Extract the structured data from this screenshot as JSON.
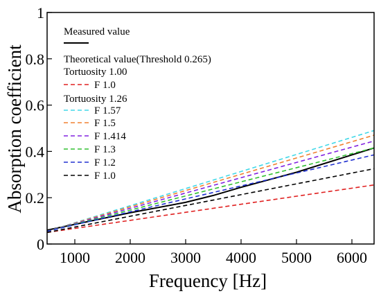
{
  "chart_data": {
    "type": "line",
    "xlabel": "Frequency [Hz]",
    "ylabel": "Absorption coefficient",
    "xlim": [
      500,
      6400
    ],
    "ylim": [
      0,
      1
    ],
    "xticks": [
      1000,
      2000,
      3000,
      4000,
      5000,
      6000
    ],
    "yticks": [
      0,
      0.2,
      0.4,
      0.6,
      0.8,
      1
    ],
    "ytick_labels": [
      "0",
      "0.2",
      "0.4",
      "0.6",
      "0.8",
      "1"
    ],
    "grid": false,
    "legend": {
      "position": "top-left",
      "entries": [
        {
          "kind": "header",
          "text": "Measured value"
        },
        {
          "kind": "line",
          "series": "measured"
        },
        {
          "kind": "header",
          "text": "Theoretical value(Threshold 0.265)"
        },
        {
          "kind": "header",
          "text": "Tortuosity 1.00"
        },
        {
          "kind": "line",
          "series": "t100_f10",
          "text": "F 1.0"
        },
        {
          "kind": "header",
          "text": "Tortuosity 1.26"
        },
        {
          "kind": "line",
          "series": "f157",
          "text": "F 1.57"
        },
        {
          "kind": "line",
          "series": "f15",
          "text": "F 1.5"
        },
        {
          "kind": "line",
          "series": "f1414",
          "text": "F 1.414"
        },
        {
          "kind": "line",
          "series": "f13",
          "text": "F 1.3"
        },
        {
          "kind": "line",
          "series": "f12",
          "text": "F 1.2"
        },
        {
          "kind": "line",
          "series": "f10",
          "text": "F 1.0"
        }
      ]
    },
    "series": [
      {
        "id": "measured",
        "color": "#000000",
        "dash": false,
        "x": [
          500,
          1000,
          2000,
          3000,
          3500,
          4000,
          5000,
          6000,
          6400
        ],
        "y": [
          0.06,
          0.085,
          0.135,
          0.18,
          0.21,
          0.245,
          0.31,
          0.385,
          0.415
        ]
      },
      {
        "id": "t100_f10",
        "color": "#e02020",
        "dash": true,
        "x": [
          500,
          6400
        ],
        "y": [
          0.05,
          0.255
        ]
      },
      {
        "id": "f157",
        "color": "#40d8e8",
        "dash": true,
        "x": [
          500,
          6400
        ],
        "y": [
          0.055,
          0.49
        ]
      },
      {
        "id": "f15",
        "color": "#f08030",
        "dash": true,
        "x": [
          500,
          6400
        ],
        "y": [
          0.055,
          0.47
        ]
      },
      {
        "id": "f1414",
        "color": "#8020e0",
        "dash": true,
        "x": [
          500,
          6400
        ],
        "y": [
          0.055,
          0.445
        ]
      },
      {
        "id": "f13",
        "color": "#30c030",
        "dash": true,
        "x": [
          500,
          6400
        ],
        "y": [
          0.055,
          0.415
        ]
      },
      {
        "id": "f12",
        "color": "#2030d0",
        "dash": true,
        "x": [
          500,
          6400
        ],
        "y": [
          0.055,
          0.385
        ]
      },
      {
        "id": "f10",
        "color": "#000000",
        "dash": true,
        "x": [
          500,
          6400
        ],
        "y": [
          0.05,
          0.325
        ]
      }
    ]
  }
}
